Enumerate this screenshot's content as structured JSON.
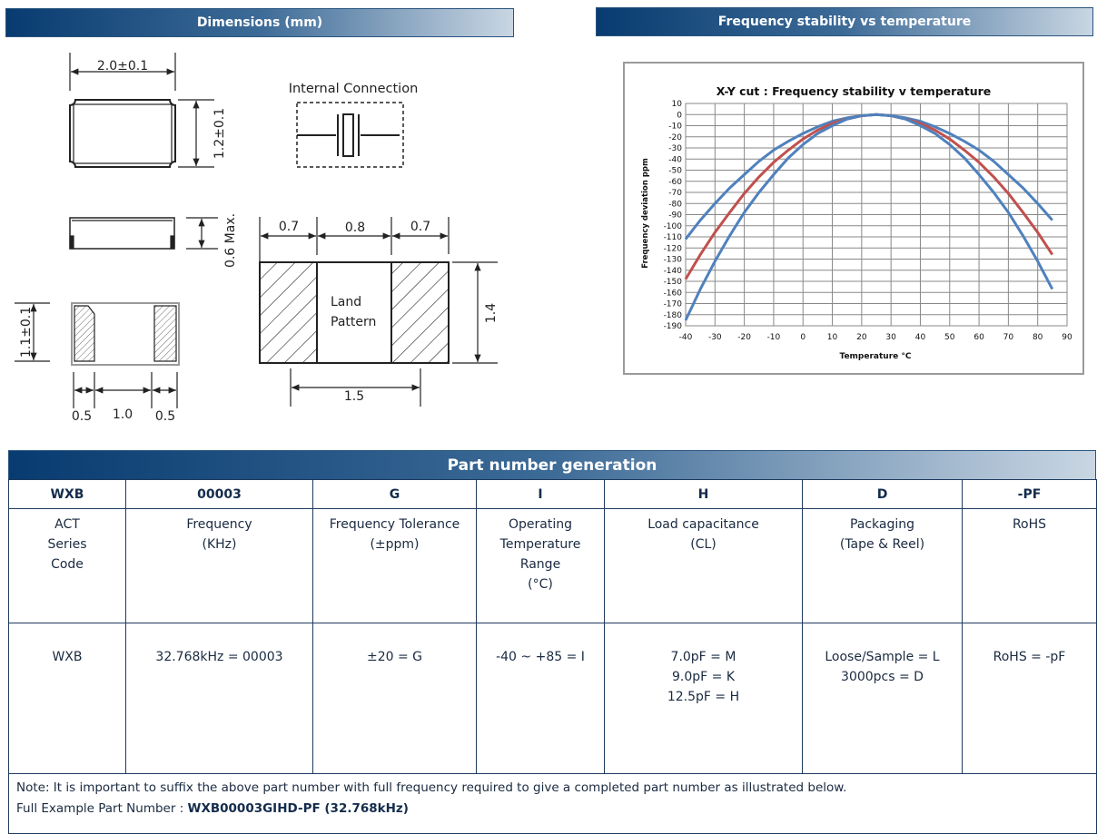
{
  "dimensions": {
    "title": "Dimensions (mm)",
    "top_view": {
      "width": "2.0±0.1",
      "height": "1.2±0.1"
    },
    "internal_connection_label": "Internal Connection",
    "side_view": {
      "height": "0.6 Max."
    },
    "bottom_view": {
      "height": "1.1±0.1",
      "pad_left": "0.5",
      "gap": "1.0",
      "pad_right": "0.5"
    },
    "land_pattern": {
      "label_line1": "Land",
      "label_line2": "Pattern",
      "pad_left": "0.7",
      "gap": "0.8",
      "pad_right": "0.7",
      "height": "1.4",
      "pitch": "1.5"
    }
  },
  "stability": {
    "title": "Frequency stability vs temperature"
  },
  "chart_data": {
    "type": "line",
    "title": "X-Y cut :  Frequency stability v temperature",
    "xlabel": "Temperature °C",
    "ylabel": "Frequency deviation ppm",
    "xlim": [
      -40,
      90
    ],
    "ylim": [
      -190,
      10
    ],
    "xticks": [
      -40,
      -30,
      -20,
      -10,
      0,
      10,
      20,
      30,
      40,
      50,
      60,
      70,
      80,
      90
    ],
    "yticks": [
      10,
      0,
      -10,
      -20,
      -30,
      -40,
      -50,
      -60,
      -70,
      -80,
      -90,
      -100,
      -110,
      -120,
      -130,
      -140,
      -150,
      -160,
      -170,
      -180,
      -190
    ],
    "grid": true,
    "x": [
      -40,
      -35,
      -30,
      -25,
      -20,
      -15,
      -10,
      -5,
      0,
      5,
      10,
      15,
      20,
      25,
      30,
      35,
      40,
      45,
      50,
      55,
      60,
      65,
      70,
      75,
      80,
      85
    ],
    "series": [
      {
        "color": "#4f81bd",
        "values": [
          -112,
          -95,
          -80,
          -66,
          -54,
          -42,
          -32,
          -24,
          -17,
          -11,
          -6,
          -3,
          -1,
          0,
          -1,
          -3,
          -6,
          -11,
          -17,
          -24,
          -32,
          -42,
          -54,
          -66,
          -80,
          -95
        ]
      },
      {
        "color": "#c0504d",
        "values": [
          -148,
          -126,
          -106,
          -88,
          -71,
          -56,
          -43,
          -32,
          -22,
          -14,
          -8,
          -4,
          -1,
          0,
          -1,
          -4,
          -8,
          -14,
          -22,
          -32,
          -43,
          -56,
          -71,
          -88,
          -106,
          -126
        ]
      },
      {
        "color": "#4f81bd",
        "values": [
          -185,
          -157,
          -132,
          -109,
          -88,
          -70,
          -54,
          -39,
          -27,
          -17,
          -10,
          -4,
          -1,
          0,
          -1,
          -4,
          -10,
          -17,
          -27,
          -39,
          -54,
          -70,
          -88,
          -109,
          -132,
          -157
        ]
      }
    ]
  },
  "part_number": {
    "title": "Part number generation",
    "codes": [
      "WXB",
      "00003",
      "G",
      "I",
      "H",
      "D",
      "-PF"
    ],
    "descriptions": [
      [
        "ACT",
        "Series",
        "Code"
      ],
      [
        "Frequency",
        "(KHz)"
      ],
      [
        "Frequency Tolerance",
        "(±ppm)"
      ],
      [
        "Operating",
        "Temperature",
        "Range",
        "(°C)"
      ],
      [
        "Load capacitance",
        "(CL)"
      ],
      [
        "Packaging",
        "(Tape & Reel)"
      ],
      [
        "RoHS"
      ]
    ],
    "values": [
      [
        "WXB"
      ],
      [
        "32.768kHz = 00003"
      ],
      [
        "±20 = G"
      ],
      [
        "-40 ~ +85 = I"
      ],
      [
        "7.0pF = M",
        "9.0pF = K",
        "12.5pF = H"
      ],
      [
        "Loose/Sample  = L",
        "3000pcs = D"
      ],
      [
        "RoHS = -pF"
      ]
    ],
    "note": "Note: It is important to suffix the above part number with full frequency required to give a completed part number as illustrated below.",
    "example_label": "Full Example Part Number : ",
    "example_value": "WXB00003GIHD-PF (32.768kHz)"
  },
  "colors": {
    "header_dark": "#083b70",
    "header_light": "#c9d6e3",
    "border": "#1f3b5e"
  }
}
